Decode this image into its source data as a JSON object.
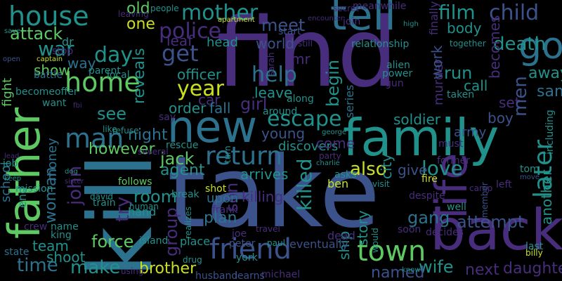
{
  "palette": {
    "yellow": "#c8e020",
    "green": "#5ec962",
    "teal": "#21918c",
    "blue": "#2c728e",
    "indigo": "#3b528b",
    "violet": "#472d7b",
    "purple": "#440154",
    "mint": "#35b779"
  },
  "words": [
    {
      "t": "find"
    },
    {
      "t": "take"
    },
    {
      "t": "kill"
    },
    {
      "t": "family"
    },
    {
      "t": "back"
    },
    {
      "t": "tell"
    },
    {
      "t": "new"
    },
    {
      "t": "go"
    },
    {
      "t": "father"
    },
    {
      "t": "life"
    },
    {
      "t": "friend"
    },
    {
      "t": "house"
    },
    {
      "t": "home"
    },
    {
      "t": "man"
    },
    {
      "t": "return"
    },
    {
      "t": "later"
    },
    {
      "t": "town"
    },
    {
      "t": "escape"
    },
    {
      "t": "mother"
    },
    {
      "t": "get"
    },
    {
      "t": "police"
    },
    {
      "t": "child"
    },
    {
      "t": "film"
    },
    {
      "t": "death"
    },
    {
      "t": "year"
    },
    {
      "t": "day"
    },
    {
      "t": "love"
    },
    {
      "t": "help"
    },
    {
      "t": "also"
    },
    {
      "t": "war"
    },
    {
      "t": "killed"
    },
    {
      "t": "john"
    },
    {
      "t": "time"
    },
    {
      "t": "make"
    },
    {
      "t": "brother"
    },
    {
      "t": "group"
    },
    {
      "t": "meet"
    },
    {
      "t": "attack"
    },
    {
      "t": "woman"
    },
    {
      "t": "see"
    },
    {
      "t": "son"
    },
    {
      "t": "officer"
    },
    {
      "t": "school"
    },
    {
      "t": "fight"
    },
    {
      "t": "one"
    },
    {
      "t": "old"
    },
    {
      "t": "girl"
    },
    {
      "t": "begin"
    },
    {
      "t": "run"
    },
    {
      "t": "wife"
    },
    {
      "t": "named"
    },
    {
      "t": "daughter"
    },
    {
      "t": "next"
    },
    {
      "t": "story"
    },
    {
      "t": "plan"
    },
    {
      "t": "try"
    },
    {
      "t": "force"
    },
    {
      "t": "room"
    },
    {
      "t": "jack"
    },
    {
      "t": "agent"
    },
    {
      "t": "however"
    },
    {
      "t": "night"
    },
    {
      "t": "money"
    },
    {
      "t": "team"
    },
    {
      "t": "shoot"
    },
    {
      "t": "show"
    },
    {
      "t": "way"
    },
    {
      "t": "leaf"
    },
    {
      "t": "head"
    },
    {
      "t": "world"
    },
    {
      "t": "mr"
    },
    {
      "t": "leave"
    },
    {
      "t": "car"
    },
    {
      "t": "fall"
    },
    {
      "t": "order"
    },
    {
      "t": "reveals"
    },
    {
      "t": "city"
    },
    {
      "t": "young"
    },
    {
      "t": "discovers"
    },
    {
      "t": "come"
    },
    {
      "t": "arrives"
    },
    {
      "t": "give"
    },
    {
      "t": "set"
    },
    {
      "t": "boy"
    },
    {
      "t": "men"
    },
    {
      "t": "sam"
    },
    {
      "t": "away"
    },
    {
      "t": "army"
    },
    {
      "t": "soldier"
    },
    {
      "t": "murder"
    },
    {
      "t": "work"
    },
    {
      "t": "call"
    },
    {
      "t": "body"
    },
    {
      "t": "attempt"
    },
    {
      "t": "gang"
    },
    {
      "t": "end"
    },
    {
      "t": "series"
    },
    {
      "t": "ship"
    },
    {
      "t": "becomes"
    },
    {
      "t": "another"
    },
    {
      "t": "killing"
    },
    {
      "t": "upon"
    },
    {
      "t": "frank"
    },
    {
      "t": "shot"
    },
    {
      "t": "place"
    },
    {
      "t": "island"
    },
    {
      "t": "york"
    },
    {
      "t": "michael"
    },
    {
      "t": "learns"
    },
    {
      "t": "husband"
    },
    {
      "t": "drug"
    },
    {
      "t": "train"
    },
    {
      "t": "david"
    },
    {
      "t": "hand"
    },
    {
      "t": "ben"
    },
    {
      "t": "dead"
    },
    {
      "t": "eventually"
    },
    {
      "t": "paul"
    },
    {
      "t": "joe"
    },
    {
      "t": "peter"
    },
    {
      "t": "mission"
    },
    {
      "t": "name"
    },
    {
      "t": "king"
    },
    {
      "t": "crew"
    },
    {
      "t": "state"
    },
    {
      "t": "job"
    },
    {
      "t": "keep"
    },
    {
      "t": "dr"
    },
    {
      "t": "stop"
    },
    {
      "t": "captain"
    },
    {
      "t": "battle"
    },
    {
      "t": "want"
    },
    {
      "t": "becomeoffer"
    },
    {
      "t": "open"
    },
    {
      "t": "save"
    },
    {
      "t": "leaving"
    },
    {
      "t": "local"
    },
    {
      "t": "parent"
    },
    {
      "t": "people"
    },
    {
      "t": "secret"
    },
    {
      "t": "meanwhile"
    },
    {
      "t": "apartment"
    },
    {
      "t": "join"
    },
    {
      "t": "start"
    },
    {
      "t": "relationship"
    },
    {
      "t": "alien"
    },
    {
      "t": "power"
    },
    {
      "t": "gun"
    },
    {
      "t": "finally"
    },
    {
      "t": "together"
    },
    {
      "t": "taken"
    },
    {
      "t": "around"
    },
    {
      "t": "along"
    },
    {
      "t": "including"
    },
    {
      "t": "rescue"
    },
    {
      "t": "like"
    },
    {
      "t": "refuse"
    },
    {
      "t": "several"
    },
    {
      "t": "follows"
    },
    {
      "t": "break"
    },
    {
      "t": "turn"
    },
    {
      "t": "party"
    },
    {
      "t": "charlie"
    },
    {
      "t": "must"
    },
    {
      "t": "former"
    },
    {
      "t": "fire"
    },
    {
      "t": "left"
    },
    {
      "t": "well"
    },
    {
      "t": "camp"
    },
    {
      "t": "member"
    },
    {
      "t": "tom"
    },
    {
      "t": "decides"
    },
    {
      "t": "soon"
    },
    {
      "t": "despite"
    },
    {
      "t": "visit"
    },
    {
      "t": "asks"
    },
    {
      "t": "would"
    },
    {
      "t": "travel"
    },
    {
      "t": "realizes"
    },
    {
      "t": "human"
    },
    {
      "t": "using"
    },
    {
      "t": "know"
    },
    {
      "t": "last"
    },
    {
      "t": "billy"
    },
    {
      "t": "encounter"
    },
    {
      "t": "sarah"
    },
    {
      "t": "still"
    },
    {
      "t": "high"
    },
    {
      "t": "george"
    },
    {
      "t": "fbi"
    },
    {
      "t": "lead"
    },
    {
      "t": "sister"
    },
    {
      "t": "dog"
    },
    {
      "t": "move"
    },
    {
      "t": "say"
    }
  ]
}
